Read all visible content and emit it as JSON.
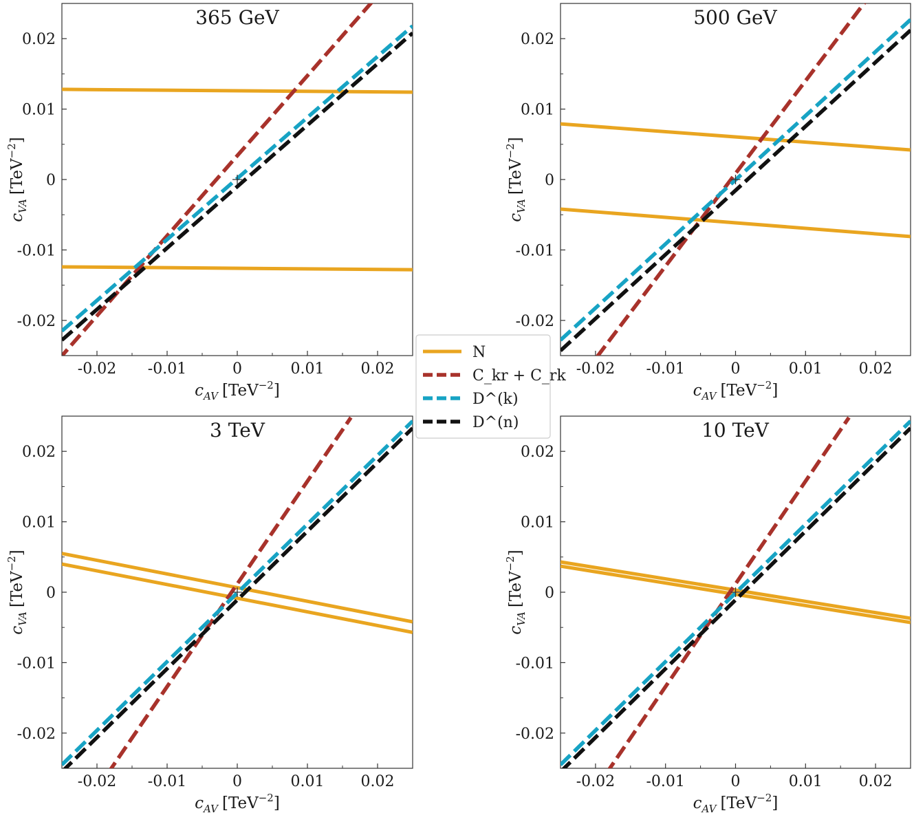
{
  "chart_data": {
    "type": "line",
    "xlim": [
      -0.025,
      0.025
    ],
    "ylim": [
      -0.025,
      0.025
    ],
    "ticks": [
      -0.02,
      -0.01,
      0,
      0.01,
      0.02
    ],
    "tick_labels": [
      "-0.02",
      "-0.01",
      "0",
      "0.01",
      "0.02"
    ],
    "xlabel": {
      "var": "c",
      "sub": "AV",
      "unit": "[TeV",
      "exp": "−2",
      "close": "]"
    },
    "ylabel": {
      "var": "c",
      "sub": "VA",
      "unit": "[TeV",
      "exp": "−2",
      "close": "]"
    },
    "colors": {
      "N": "#e9a520",
      "Ckr": "#a8322b",
      "Dk": "#17a3c4",
      "Dn": "#111111"
    },
    "legend": {
      "placement": "center",
      "entries": [
        {
          "key": "N",
          "label": "N",
          "style": "solid"
        },
        {
          "key": "Ckr",
          "label": "C_kr + C_rk",
          "style": "dashed"
        },
        {
          "key": "Dk",
          "label": "D^(k)",
          "style": "dashed"
        },
        {
          "key": "Dn",
          "label": "D^(n)",
          "style": "dashed"
        }
      ]
    },
    "panels": [
      {
        "title": "365 GeV",
        "series": [
          {
            "key": "N",
            "name": "N (upper)",
            "x": [
              -0.025,
              0.025
            ],
            "y": [
              0.0128,
              0.0124
            ]
          },
          {
            "key": "N",
            "name": "N (lower)",
            "x": [
              -0.025,
              0.025
            ],
            "y": [
              -0.0124,
              -0.0128
            ]
          },
          {
            "key": "Ckr",
            "name": "C_kr + C_rk",
            "x": [
              -0.0255,
              0.0192
            ],
            "y": [
              -0.0256,
              0.0252
            ]
          },
          {
            "key": "Dk",
            "name": "D^(k)",
            "x": [
              -0.025,
              0.025
            ],
            "y": [
              -0.0215,
              0.0218
            ]
          },
          {
            "key": "Dn",
            "name": "D^(n)",
            "x": [
              -0.025,
              0.025
            ],
            "y": [
              -0.0228,
              0.0208
            ]
          }
        ]
      },
      {
        "title": "500 GeV",
        "series": [
          {
            "key": "N",
            "name": "N (upper)",
            "x": [
              -0.025,
              0.025
            ],
            "y": [
              0.0079,
              0.0042
            ]
          },
          {
            "key": "N",
            "name": "N (lower)",
            "x": [
              -0.025,
              0.025
            ],
            "y": [
              -0.0042,
              -0.0081
            ]
          },
          {
            "key": "Ckr",
            "name": "C_kr + C_rk",
            "x": [
              -0.0198,
              0.0185
            ],
            "y": [
              -0.0252,
              0.0252
            ]
          },
          {
            "key": "Dk",
            "name": "D^(k)",
            "x": [
              -0.025,
              0.025
            ],
            "y": [
              -0.0228,
              0.0227
            ]
          },
          {
            "key": "Dn",
            "name": "D^(n)",
            "x": [
              -0.025,
              0.025
            ],
            "y": [
              -0.0243,
              0.0212
            ]
          }
        ]
      },
      {
        "title": "3 TeV",
        "series": [
          {
            "key": "N",
            "name": "N (upper)",
            "x": [
              -0.025,
              0.025
            ],
            "y": [
              0.0055,
              -0.0042
            ]
          },
          {
            "key": "N",
            "name": "N (lower)",
            "x": [
              -0.025,
              0.025
            ],
            "y": [
              0.004,
              -0.0057
            ]
          },
          {
            "key": "Ckr",
            "name": "C_kr + C_rk",
            "x": [
              -0.0185,
              0.0162
            ],
            "y": [
              -0.0258,
              0.0248
            ]
          },
          {
            "key": "Dk",
            "name": "D^(k)",
            "x": [
              -0.025,
              0.025
            ],
            "y": [
              -0.0245,
              0.0243
            ]
          },
          {
            "key": "Dn",
            "name": "D^(n)",
            "x": [
              -0.025,
              0.025
            ],
            "y": [
              -0.0255,
              0.0233
            ]
          }
        ]
      },
      {
        "title": "10 TeV",
        "series": [
          {
            "key": "N",
            "name": "N (upper)",
            "x": [
              -0.025,
              0.025
            ],
            "y": [
              0.0043,
              -0.0037
            ]
          },
          {
            "key": "N",
            "name": "N (lower)",
            "x": [
              -0.025,
              0.025
            ],
            "y": [
              0.0037,
              -0.0043
            ]
          },
          {
            "key": "Ckr",
            "name": "C_kr + C_rk",
            "x": [
              -0.0185,
              0.0162
            ],
            "y": [
              -0.0258,
              0.0248
            ]
          },
          {
            "key": "Dk",
            "name": "D^(k)",
            "x": [
              -0.025,
              0.025
            ],
            "y": [
              -0.0245,
              0.0243
            ]
          },
          {
            "key": "Dn",
            "name": "D^(n)",
            "x": [
              -0.025,
              0.025
            ],
            "y": [
              -0.0255,
              0.0233
            ]
          }
        ]
      }
    ]
  }
}
